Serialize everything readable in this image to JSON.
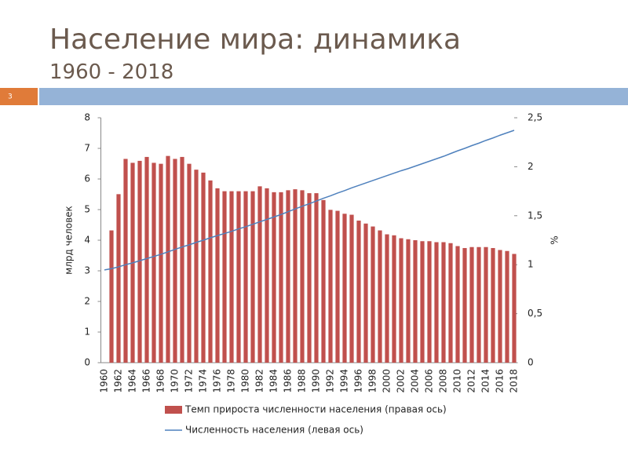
{
  "slide": {
    "number": "3"
  },
  "chart_data": {
    "type": "bar-line",
    "title": "Население мира: динамика",
    "subtitle": "1960 - 2018",
    "y_label": "млрд человек",
    "y2_label": "%",
    "categories": [
      "1960",
      null,
      "1962",
      null,
      "1964",
      null,
      "1966",
      null,
      "1968",
      null,
      "1970",
      null,
      "1972",
      null,
      "1974",
      null,
      "1976",
      null,
      "1978",
      null,
      "1980",
      null,
      "1982",
      null,
      "1984",
      null,
      "1986",
      null,
      "1988",
      null,
      "1990",
      null,
      "1992",
      null,
      "1994",
      null,
      "1996",
      null,
      "1998",
      null,
      "2000",
      null,
      "2002",
      null,
      "2004",
      null,
      "2006",
      null,
      "2008",
      null,
      "2010",
      null,
      "2012",
      null,
      "2014",
      null,
      "2016",
      null,
      "2018"
    ],
    "series": [
      {
        "name": "Темп прироста численности населения (правая ось)",
        "type": "bar",
        "axis": "y2",
        "color": "#c0504d",
        "values": [
          null,
          1.35,
          1.72,
          2.08,
          2.04,
          2.06,
          2.1,
          2.04,
          2.03,
          2.11,
          2.08,
          2.1,
          2.03,
          1.97,
          1.94,
          1.86,
          1.78,
          1.75,
          1.75,
          1.75,
          1.75,
          1.75,
          1.8,
          1.78,
          1.74,
          1.74,
          1.76,
          1.77,
          1.76,
          1.73,
          1.73,
          1.66,
          1.56,
          1.55,
          1.52,
          1.51,
          1.45,
          1.42,
          1.39,
          1.35,
          1.31,
          1.3,
          1.27,
          1.26,
          1.25,
          1.24,
          1.24,
          1.23,
          1.23,
          1.22,
          1.19,
          1.17,
          1.18,
          1.18,
          1.18,
          1.17,
          1.15,
          1.14,
          1.11
        ]
      },
      {
        "name": "Численность населения (левая ось)",
        "type": "line",
        "color": "#4f81bd",
        "values": [
          3.03,
          3.07,
          3.13,
          3.2,
          3.26,
          3.33,
          3.4,
          3.47,
          3.54,
          3.62,
          3.7,
          3.78,
          3.85,
          3.93,
          4.0,
          4.08,
          4.15,
          4.22,
          4.29,
          4.37,
          4.44,
          4.52,
          4.6,
          4.68,
          4.76,
          4.84,
          4.93,
          5.02,
          5.11,
          5.19,
          5.28,
          5.37,
          5.45,
          5.54,
          5.62,
          5.71,
          5.79,
          5.87,
          5.95,
          6.03,
          6.11,
          6.19,
          6.27,
          6.34,
          6.42,
          6.5,
          6.58,
          6.66,
          6.74,
          6.83,
          6.92,
          7.0,
          7.09,
          7.17,
          7.26,
          7.34,
          7.43,
          7.51,
          7.59
        ]
      }
    ],
    "ylim": [
      0,
      8
    ],
    "yticks": [
      0,
      1,
      2,
      3,
      4,
      5,
      6,
      7,
      8
    ],
    "y2lim": [
      0,
      2.5
    ],
    "y2ticks": [
      0,
      {
        "value": 0.5,
        "label": "0,5"
      },
      1,
      {
        "value": 1.5,
        "label": "1,5"
      },
      2,
      {
        "value": 2.5,
        "label": "2,5"
      }
    ],
    "grid": false,
    "legend": "bottom"
  }
}
